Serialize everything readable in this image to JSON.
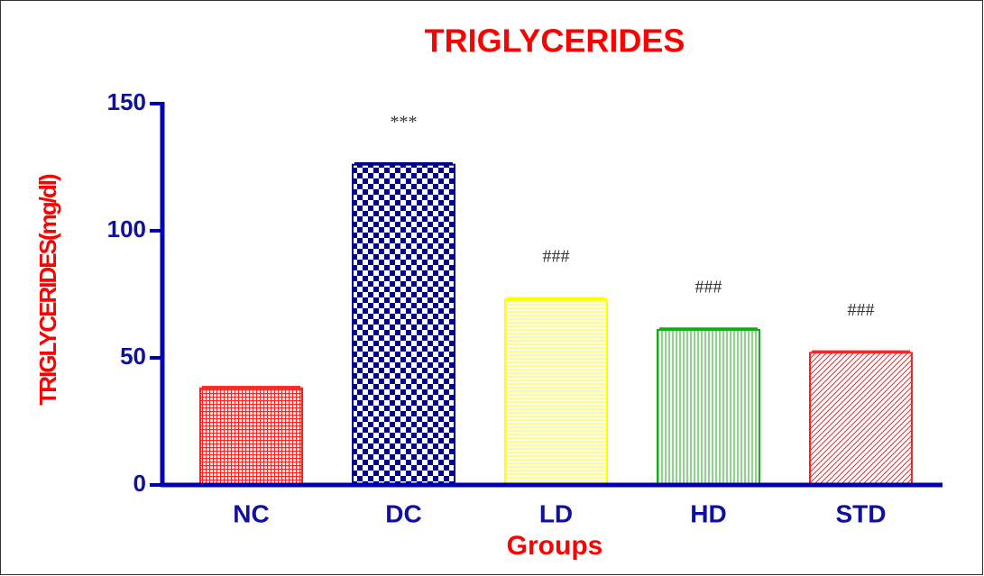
{
  "chart_data": {
    "type": "bar",
    "title": "TRIGLYCERIDES",
    "x_label": "Groups",
    "y_label": "TRIGLYCERIDES(mg/dl)",
    "categories": [
      "NC",
      "DC",
      "LD",
      "HD",
      "STD"
    ],
    "values": [
      38,
      126,
      73,
      61,
      52
    ],
    "errors": [
      0.6,
      0.6,
      0.6,
      0.6,
      0.6
    ],
    "annotations": [
      null,
      "***",
      "###",
      "###",
      "###"
    ],
    "colors": [
      "#ff2020",
      "#00008b",
      "#ffff00",
      "#10b010",
      "#ff2020"
    ],
    "patterns": [
      "crosshatch",
      "checker",
      "horizontal",
      "vertical",
      "diagonal"
    ],
    "ylim": [
      0,
      150
    ],
    "yticks": [
      0,
      50,
      100,
      150
    ],
    "grid": false
  }
}
